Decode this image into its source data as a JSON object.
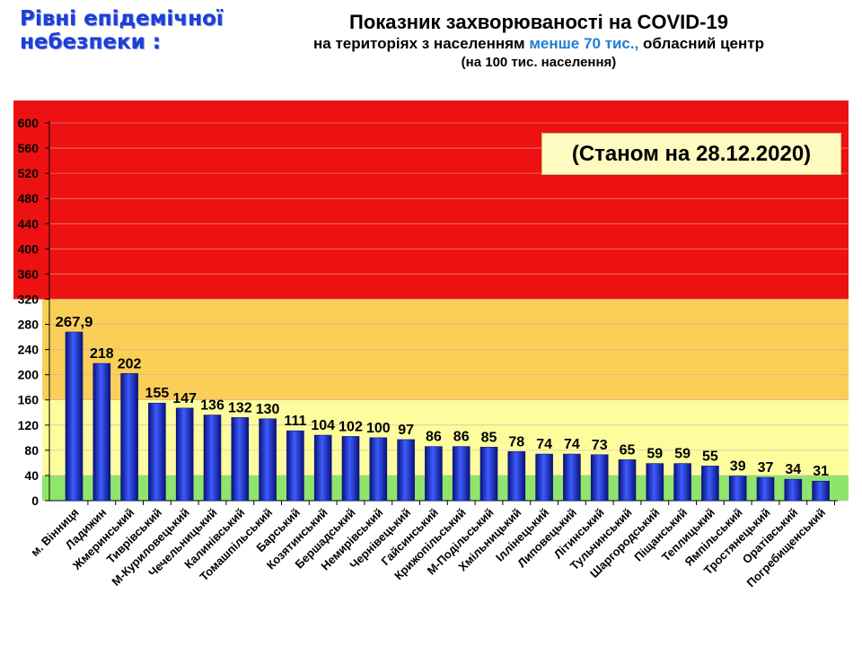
{
  "header": {
    "legend_title": "Рівні епідемічної небезпеки :",
    "title_line1": "Показник захворюваності на COVID-19",
    "title_line2_prefix": "на територіях з населенням ",
    "title_line2_highlight": "менше 70 тис.,",
    "title_line2_suffix": " обласний центр",
    "title_line3": "(на 100  тис. населення)"
  },
  "date_label": "(Станом на 28.12.2020)",
  "colors": {
    "zone_red": "#ee1111",
    "zone_orange": "#f9cf57",
    "zone_yellow": "#fdfd9e",
    "zone_green": "#8fe56b",
    "bar": "#1a2bd6",
    "highlight_text": "#1f7fd0",
    "legend_text": "#1d3fd6"
  },
  "chart_data": {
    "type": "bar",
    "categories": [
      "м. Вінниця",
      "Ладижин",
      "Жмеринський",
      "Тиврівський",
      "М-Куриловецький",
      "Чечельницький",
      "Калинівський",
      "Томашпільський",
      "Барський",
      "Козятинський",
      "Бершадський",
      "Немирівський",
      "Чернівецький",
      "Гайсинський",
      "Крижопільський",
      "М-Подільський",
      "Хмільницький",
      "Іллінецький",
      "Липовецький",
      "Літинський",
      "Тульчинський",
      "Шаргородський",
      "Піщанський",
      "Теплицький",
      "Ямпільський",
      "Тростянецький",
      "Оратівський",
      "Погребищенський"
    ],
    "values": [
      267.9,
      218,
      202,
      155,
      147,
      136,
      132,
      130,
      111,
      104,
      102,
      100,
      97,
      86,
      86,
      85,
      78,
      74,
      74,
      73,
      65,
      59,
      59,
      55,
      39,
      37,
      34,
      31
    ],
    "value_labels": [
      "267,9",
      "218",
      "202",
      "155",
      "147",
      "136",
      "132",
      "130",
      "111",
      "104",
      "102",
      "100",
      "97",
      "86",
      "86",
      "85",
      "78",
      "74",
      "74",
      "73",
      "65",
      "59",
      "59",
      "55",
      "39",
      "37",
      "34",
      "31"
    ],
    "yticks": [
      "0",
      "40",
      "80",
      "120",
      "160",
      "200",
      "240",
      "280",
      "320",
      "360",
      "400",
      "440",
      "480",
      "520",
      "560",
      "600"
    ],
    "ylim": [
      0,
      600
    ],
    "zones": [
      {
        "name": "green",
        "from": 0,
        "to": 40
      },
      {
        "name": "yellow",
        "from": 40,
        "to": 160
      },
      {
        "name": "orange",
        "from": 160,
        "to": 320
      },
      {
        "name": "red",
        "from": 320,
        "to": 600
      }
    ]
  }
}
